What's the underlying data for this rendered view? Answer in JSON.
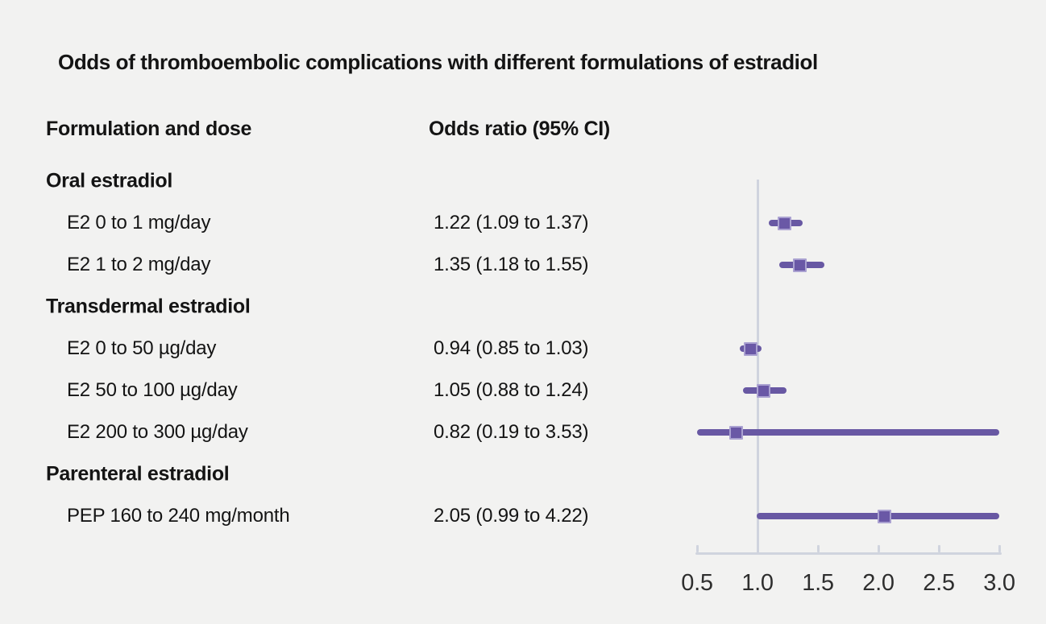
{
  "title": "Odds of thromboembolic complications with different formulations of estradiol",
  "columns": {
    "left": "Formulation and dose",
    "right": "Odds ratio (95% CI)"
  },
  "colors": {
    "background": "#f2f2f1",
    "text": "#141414",
    "tick_text": "#2e2e2e",
    "marker_fill": "#6a58a6",
    "marker_edge": "#aaa1d1",
    "ci_line": "#6858a3",
    "axis_line": "#d0d4de"
  },
  "chart_data": {
    "type": "forest",
    "title": "Odds of thromboembolic complications with different formulations of estradiol",
    "xlabel": "",
    "ylabel": "",
    "x_axis": {
      "scale": "linear",
      "min": 0.5,
      "max": 3.0,
      "ticks": [
        0.5,
        1.0,
        1.5,
        2.0,
        2.5,
        3.0
      ],
      "tick_labels": [
        "0.5",
        "1.0",
        "1.5",
        "2.0",
        "2.5",
        "3.0"
      ],
      "reference_line": 1.0
    },
    "legend": null,
    "grid": false,
    "groups": [
      {
        "label": "Oral estradiol",
        "items": [
          {
            "label": "E2 0 to 1 mg/day",
            "or_text": "1.22 (1.09 to 1.37)",
            "or": 1.22,
            "ci_low": 1.09,
            "ci_high": 1.37
          },
          {
            "label": "E2 1 to 2 mg/day",
            "or_text": "1.35 (1.18 to 1.55)",
            "or": 1.35,
            "ci_low": 1.18,
            "ci_high": 1.55
          }
        ]
      },
      {
        "label": "Transdermal estradiol",
        "items": [
          {
            "label": "E2 0 to 50 µg/day",
            "or_text": "0.94 (0.85 to 1.03)",
            "or": 0.94,
            "ci_low": 0.85,
            "ci_high": 1.03
          },
          {
            "label": "E2 50 to 100 µg/day",
            "or_text": "1.05 (0.88 to 1.24)",
            "or": 1.05,
            "ci_low": 0.88,
            "ci_high": 1.24
          },
          {
            "label": "E2 200 to 300 µg/day",
            "or_text": "0.82 (0.19 to 3.53)",
            "or": 0.82,
            "ci_low": 0.19,
            "ci_high": 3.53
          }
        ]
      },
      {
        "label": "Parenteral estradiol",
        "items": [
          {
            "label": "PEP 160 to 240 mg/month",
            "or_text": "2.05 (0.99 to 4.22)",
            "or": 2.05,
            "ci_low": 0.99,
            "ci_high": 4.22
          }
        ]
      }
    ]
  }
}
